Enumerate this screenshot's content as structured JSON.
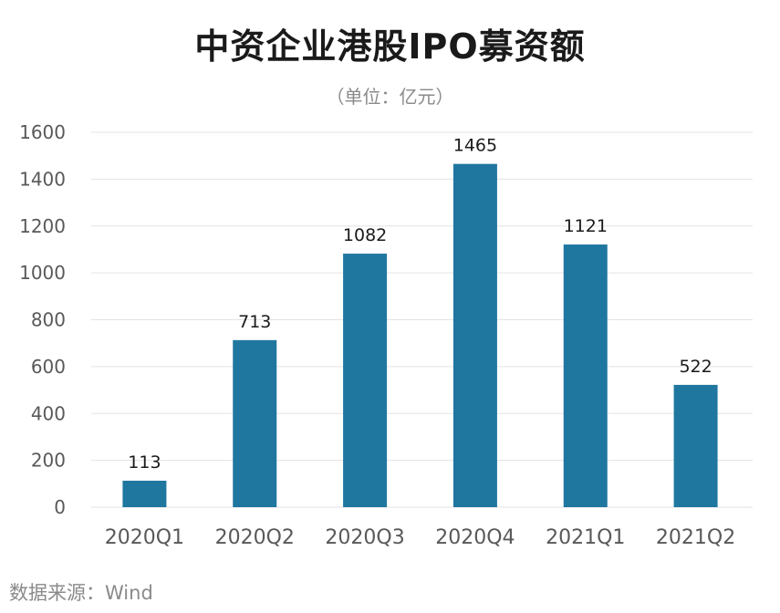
{
  "title": "中资企业港股IPO募资额",
  "subtitle": "（单位：亿元）",
  "source": "数据来源：Wind",
  "colors": {
    "bar": "#1f77a0",
    "grid": "#e3e3e3",
    "axis_text": "#595959",
    "label_text": "#1a1a1a"
  },
  "chart_data": {
    "type": "bar",
    "categories": [
      "2020Q1",
      "2020Q2",
      "2020Q3",
      "2020Q4",
      "2021Q1",
      "2021Q2"
    ],
    "values": [
      113,
      713,
      1082,
      1465,
      1121,
      522
    ],
    "data_labels": [
      "113",
      "713",
      "1082",
      "1465",
      "1121",
      "522"
    ],
    "yticks": [
      0,
      200,
      400,
      600,
      800,
      1000,
      1200,
      1400,
      1600
    ],
    "ylim": [
      0,
      1600
    ],
    "grid": true,
    "legend": "none"
  }
}
